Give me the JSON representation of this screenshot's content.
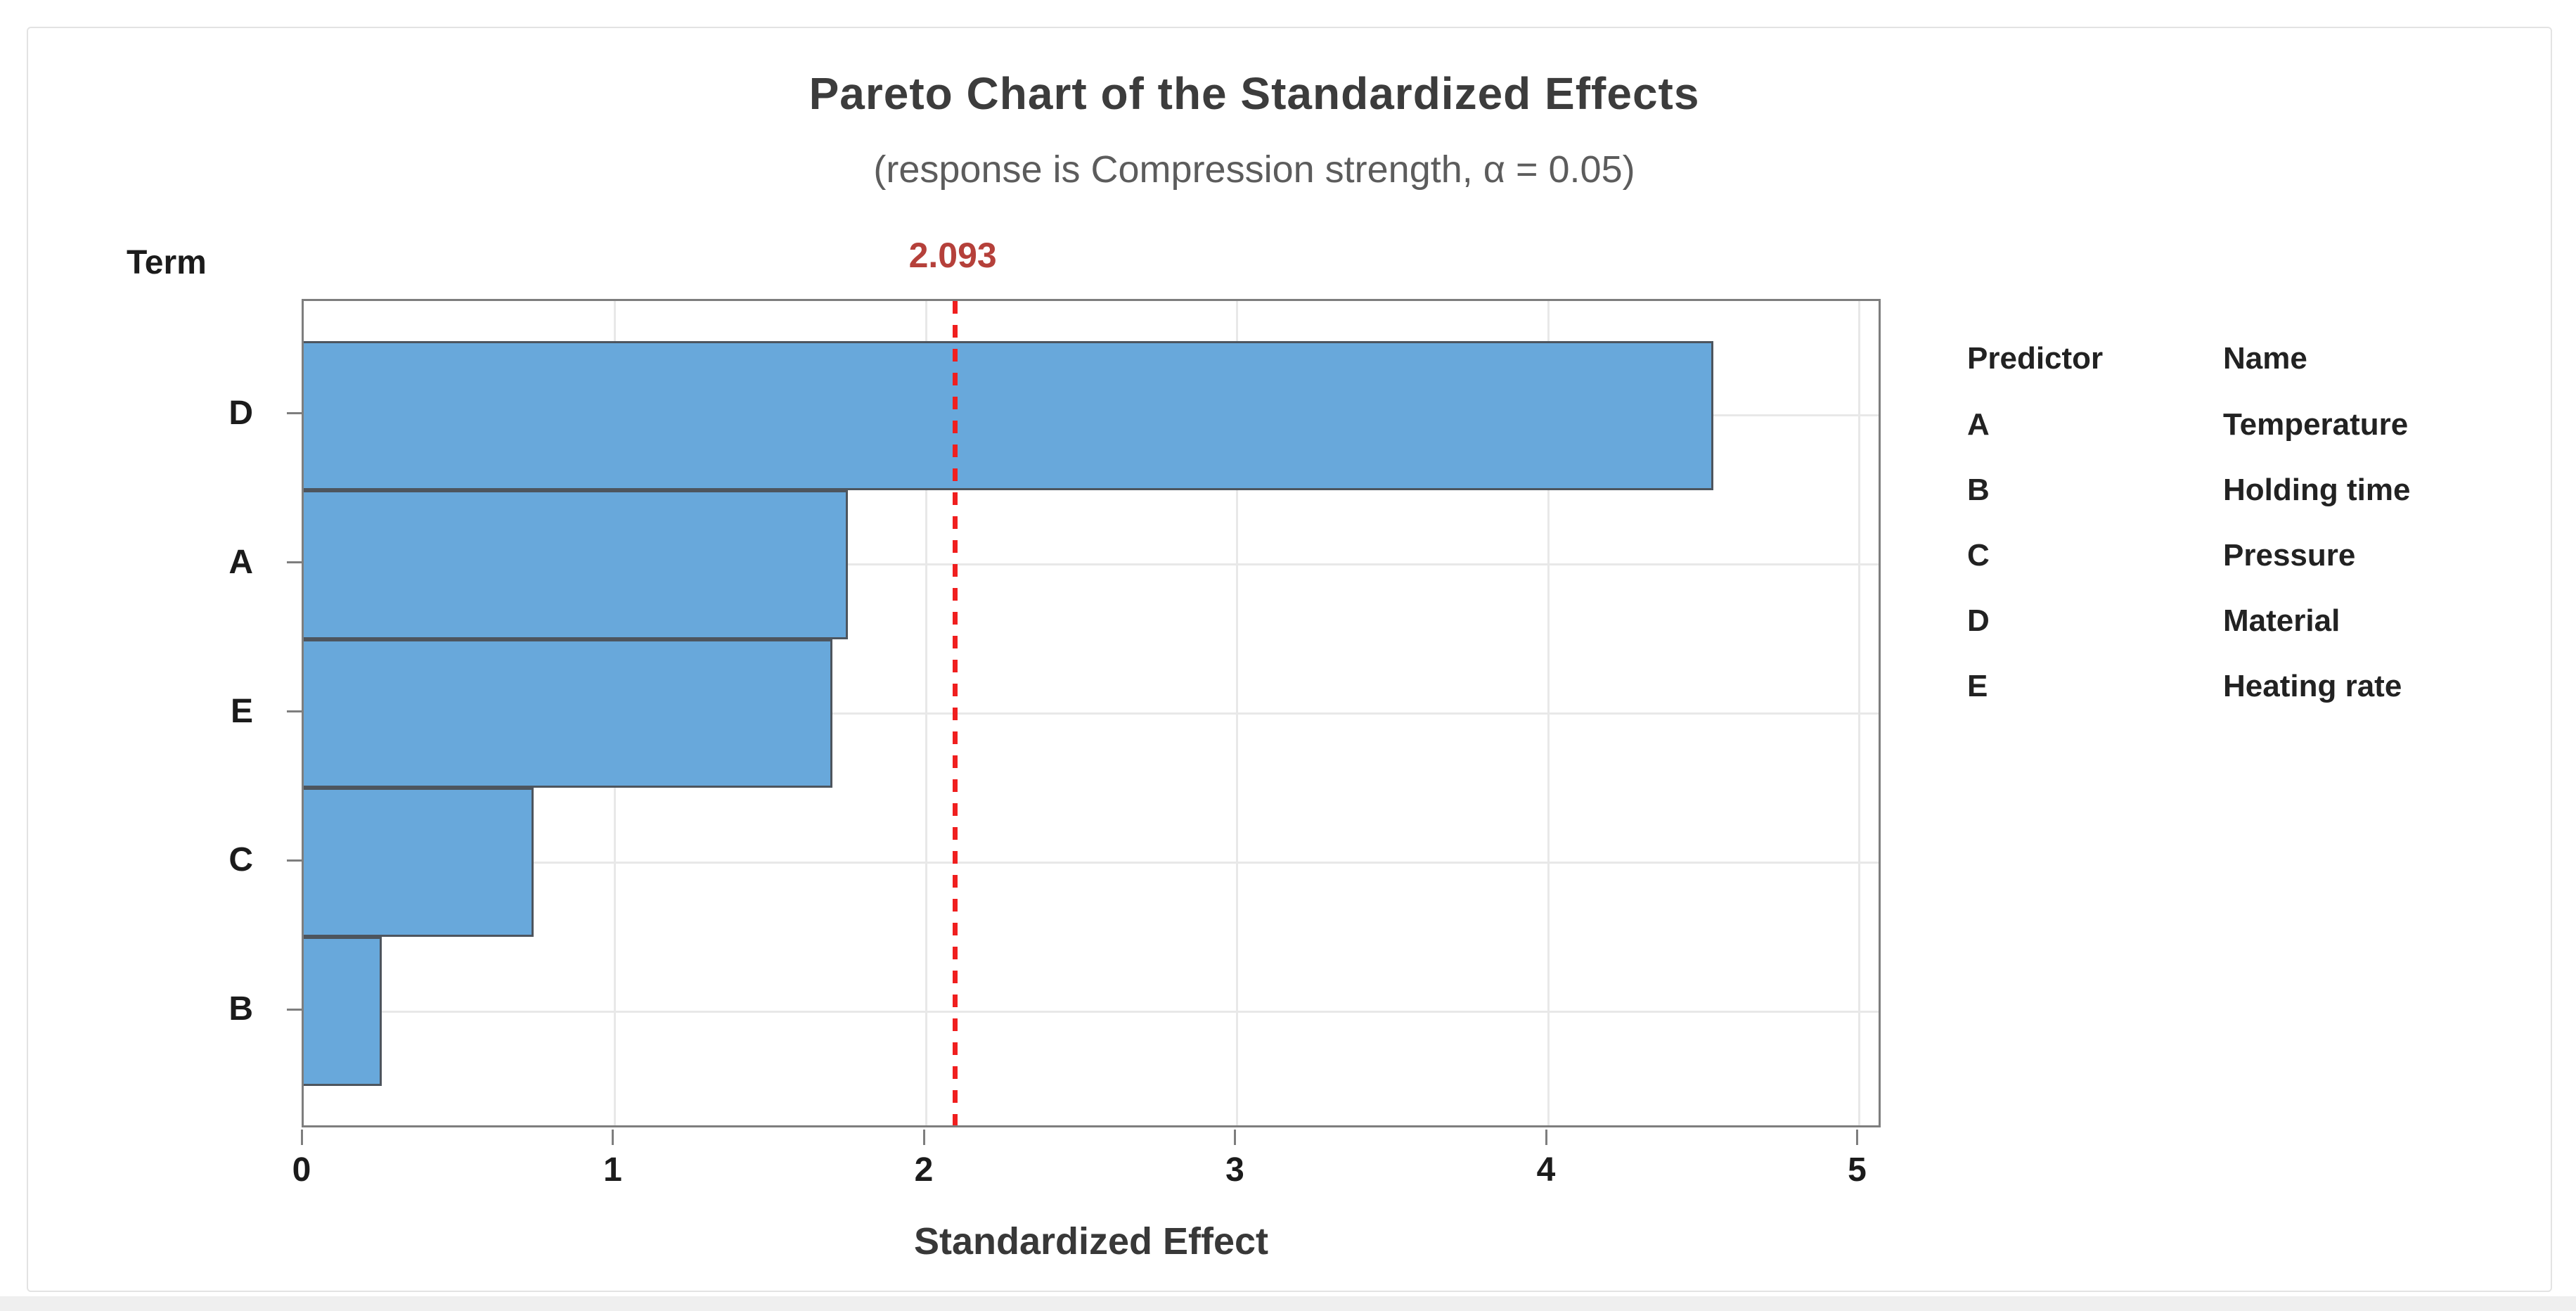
{
  "window": {
    "background": "#ffffff",
    "card_border": "#e3e3e3",
    "footer_strip": "#efefef"
  },
  "chart_data": {
    "type": "bar",
    "orientation": "horizontal",
    "title": "Pareto Chart of the Standardized Effects",
    "subtitle": "(response is Compression strength, α = 0.05)",
    "y_axis_title": "Term",
    "xlabel": "Standardized Effect",
    "categories": [
      "D",
      "A",
      "E",
      "C",
      "B"
    ],
    "values": [
      4.53,
      1.75,
      1.7,
      0.74,
      0.25
    ],
    "x_ticks": [
      0,
      1,
      2,
      3,
      4,
      5
    ],
    "xlim": [
      0,
      5.08
    ],
    "grid": "on",
    "bar_fill": "#68a8db",
    "bar_border": "#4d555e",
    "axis_color": "#7e7e7e",
    "gridline_color": "#e8e8e8",
    "text_color": "#1b1b1b",
    "title_color": "#3c3c3c",
    "subtitle_color": "#5c5c5c",
    "reference_line": {
      "value": 2.093,
      "label": "2.093",
      "line_color": "#f01f1f",
      "label_color": "#b5403a",
      "style": "dashed"
    },
    "legend_position": "right",
    "legend": {
      "headers": [
        "Predictor",
        "Name"
      ],
      "rows": [
        [
          "A",
          "Temperature"
        ],
        [
          "B",
          "Holding time"
        ],
        [
          "C",
          "Pressure"
        ],
        [
          "D",
          "Material"
        ],
        [
          "E",
          "Heating rate"
        ]
      ]
    }
  }
}
